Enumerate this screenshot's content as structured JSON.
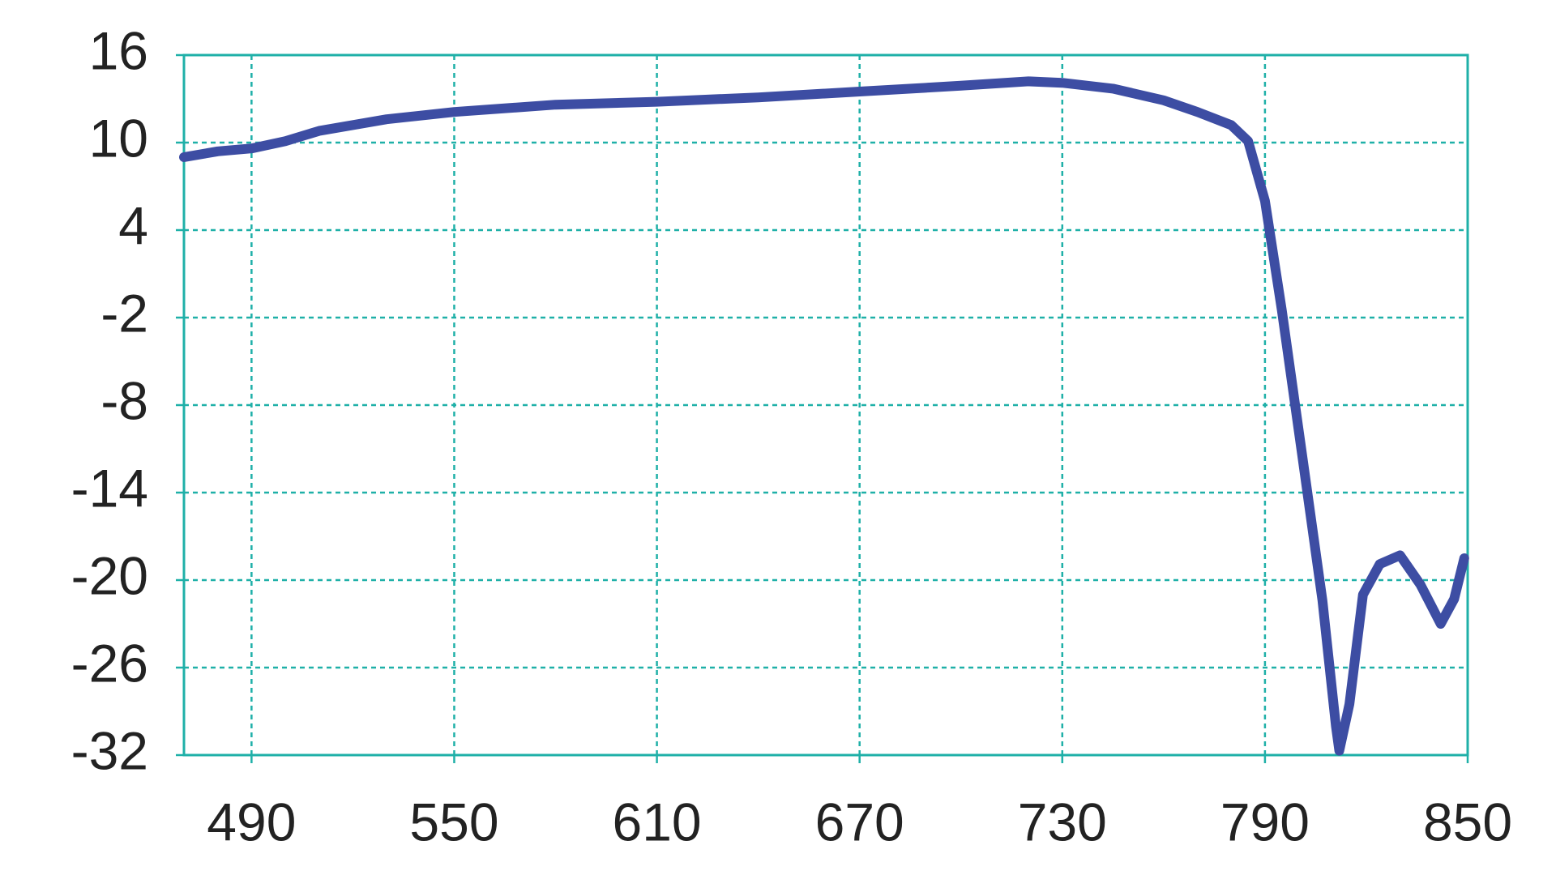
{
  "chart_data": {
    "type": "line",
    "x": [
      470,
      480,
      490,
      500,
      510,
      530,
      550,
      580,
      610,
      640,
      670,
      700,
      720,
      730,
      745,
      760,
      770,
      780,
      785,
      790,
      795,
      801,
      807,
      811,
      812,
      815,
      819,
      824,
      830,
      836,
      842,
      846,
      849
    ],
    "series": [
      {
        "color": "#3d4da3",
        "values": [
          9.0,
          9.4,
          9.6,
          10.1,
          10.8,
          11.6,
          12.1,
          12.6,
          12.8,
          13.1,
          13.5,
          13.9,
          14.2,
          14.1,
          13.7,
          12.9,
          12.1,
          11.2,
          10.1,
          6.0,
          -1.5,
          -11.4,
          -21.4,
          -30.0,
          -31.7,
          -28.5,
          -21.0,
          -18.9,
          -18.3,
          -20.3,
          -23.0,
          -21.3,
          -18.5
        ]
      }
    ],
    "xlim": [
      470,
      850
    ],
    "ylim": [
      -32,
      16
    ],
    "xticks": [
      490,
      550,
      610,
      670,
      730,
      790,
      850
    ],
    "yticks": [
      -32,
      -26,
      -20,
      -14,
      -8,
      -2,
      4,
      10,
      16
    ],
    "grid": true,
    "grid_color": "#1fb0a8"
  }
}
